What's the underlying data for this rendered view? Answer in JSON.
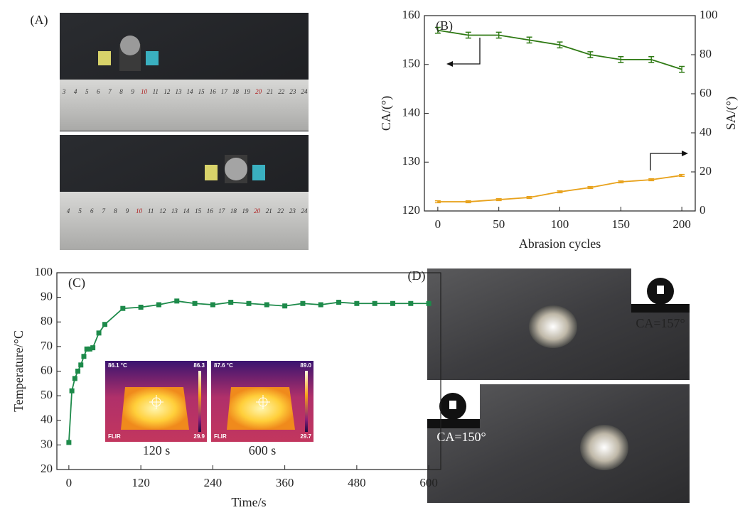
{
  "panels": {
    "a_label": "(A)",
    "d_label": "(D)"
  },
  "photos": {
    "ruler_top": [
      "3",
      "4",
      "5",
      "6",
      "7",
      "8",
      "9",
      "10",
      "11",
      "12",
      "13",
      "14",
      "15",
      "16",
      "17",
      "18",
      "19",
      "20",
      "21",
      "22",
      "23",
      "24"
    ],
    "ruler_bottom": [
      "4",
      "5",
      "6",
      "7",
      "8",
      "9",
      "10",
      "11",
      "12",
      "13",
      "14",
      "15",
      "16",
      "17",
      "18",
      "19",
      "20",
      "21",
      "22",
      "23",
      "24"
    ],
    "ca_top": "CA=157°",
    "ca_bottom": "CA=150°"
  },
  "chart_data": [
    {
      "type": "line",
      "title": "(B)",
      "xlabel": "Abrasion cycles",
      "ylabel": "CA/(°)",
      "y2label": "SA/(°)",
      "x": [
        0,
        25,
        50,
        75,
        100,
        125,
        150,
        175,
        200
      ],
      "xlim": [
        -11,
        211
      ],
      "xticks": [
        0,
        50,
        100,
        150,
        200
      ],
      "ylim": [
        120,
        160
      ],
      "yticks": [
        120,
        130,
        140,
        150,
        160
      ],
      "y2lim": [
        0,
        100
      ],
      "y2ticks": [
        0,
        20,
        40,
        60,
        80,
        100
      ],
      "series": [
        {
          "color": "#2f7a14",
          "values": [
            157,
            156,
            156,
            155,
            154,
            152,
            151,
            151,
            149
          ],
          "errors": [
            0.6,
            0.6,
            0.6,
            0.6,
            0.6,
            0.6,
            0.6,
            0.6,
            0.6
          ]
        },
        {
          "color": "#e8a21c",
          "axis": "y2",
          "values": [
            4.7,
            4.7,
            5.8,
            6.9,
            9.8,
            12,
            14.9,
            16,
            18.2
          ],
          "errors": [
            0.5,
            0.5,
            0.5,
            0.5,
            0.5,
            0.5,
            0.5,
            0.5,
            0.5
          ]
        }
      ]
    },
    {
      "type": "line",
      "title": "(C)",
      "xlabel": "Time/s",
      "ylabel": "Temperature/°C",
      "marker": "square",
      "x": [
        0,
        5,
        10,
        15,
        20,
        25,
        30,
        35,
        40,
        50,
        60,
        90,
        120,
        150,
        180,
        210,
        240,
        270,
        300,
        330,
        360,
        390,
        420,
        450,
        480,
        510,
        540,
        570,
        600
      ],
      "xlim": [
        -20,
        620
      ],
      "xticks": [
        0,
        120,
        240,
        360,
        480,
        600
      ],
      "ylim": [
        20,
        100
      ],
      "yticks": [
        20,
        30,
        40,
        50,
        60,
        70,
        80,
        90,
        100
      ],
      "series": [
        {
          "color": "#1d8a4a",
          "values": [
            31,
            52,
            57,
            60,
            62.5,
            66,
            69,
            69,
            69.5,
            75.5,
            79,
            85.5,
            86,
            87,
            88.5,
            87.5,
            87,
            88,
            87.5,
            87,
            86.5,
            87.5,
            87,
            88,
            87.5,
            87.5,
            87.5,
            87.5,
            87.5
          ]
        }
      ],
      "insets": [
        {
          "caption": "120 s",
          "reading": "86.1 °C",
          "scale_max": "86.3",
          "scale_min": "29.9",
          "brand": "FLIR"
        },
        {
          "caption": "600 s",
          "reading": "87.6 °C",
          "scale_max": "89.0",
          "scale_min": "29.7",
          "brand": "FLIR"
        }
      ]
    }
  ]
}
